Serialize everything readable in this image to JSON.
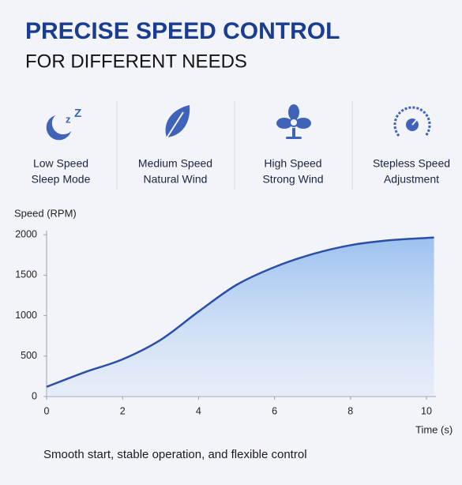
{
  "header": {
    "title": "PRECISE SPEED CONTROL",
    "subtitle": "FOR DIFFERENT NEEDS"
  },
  "features": [
    {
      "line1": "Low Speed",
      "line2": "Sleep Mode"
    },
    {
      "line1": "Medium Speed",
      "line2": "Natural Wind"
    },
    {
      "line1": "High Speed",
      "line2": "Strong Wind"
    },
    {
      "line1": "Stepless Speed",
      "line2": "Adjustment"
    }
  ],
  "chart_data": {
    "type": "area",
    "y_label": "Speed (RPM)",
    "x_label": "Time (s)",
    "x": [
      0,
      1,
      2,
      3,
      4,
      5,
      6,
      7,
      8,
      9,
      10,
      10.2
    ],
    "series": [
      {
        "name": "Speed",
        "color": "#2a4fa8",
        "values": [
          120,
          300,
          460,
          700,
          1050,
          1380,
          1600,
          1760,
          1870,
          1930,
          1960,
          1965
        ]
      }
    ],
    "xlim": [
      0,
      10.25
    ],
    "ylim": [
      0,
      2050
    ],
    "xticks": [
      0,
      2,
      4,
      6,
      8,
      10
    ],
    "yticks": [
      0,
      500,
      1000,
      1500,
      2000
    ],
    "grid": false
  },
  "caption": "Smooth start, stable operation, and flexible control"
}
